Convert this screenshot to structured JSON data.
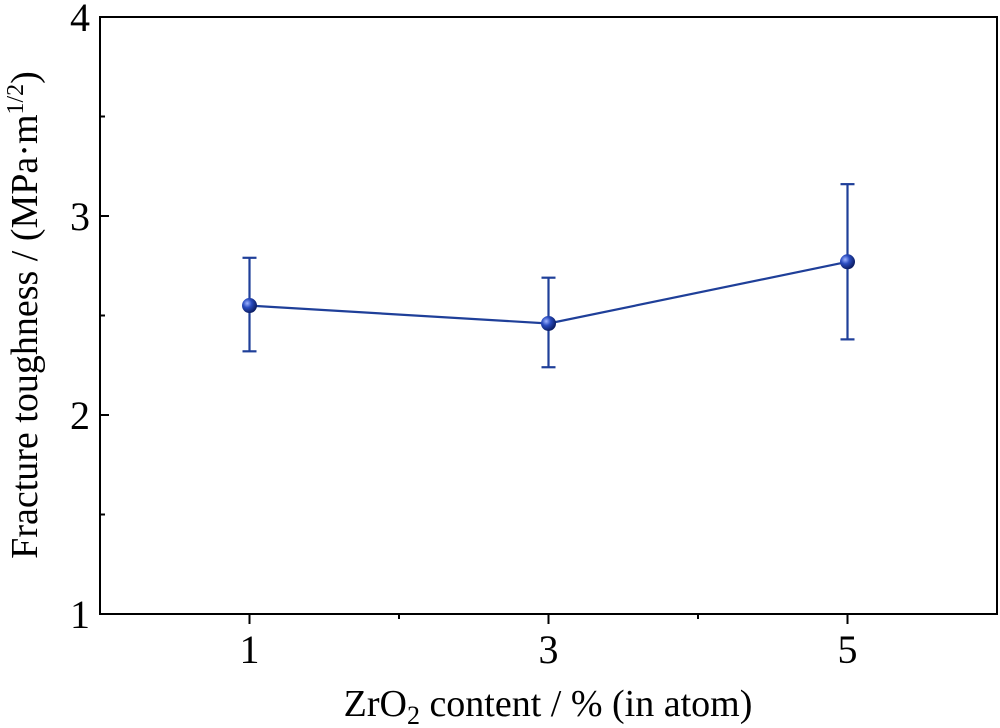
{
  "chart_data": {
    "type": "line",
    "xlabel": {
      "main": "ZrO",
      "sub": "2",
      "rest": " content / % (in atom)"
    },
    "ylabel": {
      "main": "Fracture toughness / (MPa·m",
      "sup": "1/2",
      "end": ")"
    },
    "xlim": [
      0,
      6
    ],
    "ylim": [
      1,
      4
    ],
    "x_ticks": [
      "1",
      "3",
      "5"
    ],
    "y_ticks": [
      "1",
      "2",
      "3",
      "4"
    ],
    "series": [
      {
        "x": [
          1,
          3,
          5
        ],
        "y": [
          2.55,
          2.46,
          2.77
        ],
        "err_low": [
          2.32,
          2.24,
          2.38
        ],
        "err_high": [
          2.79,
          2.69,
          3.16
        ],
        "color": "#1f3f99"
      }
    ],
    "grid": false,
    "legend": "none"
  }
}
